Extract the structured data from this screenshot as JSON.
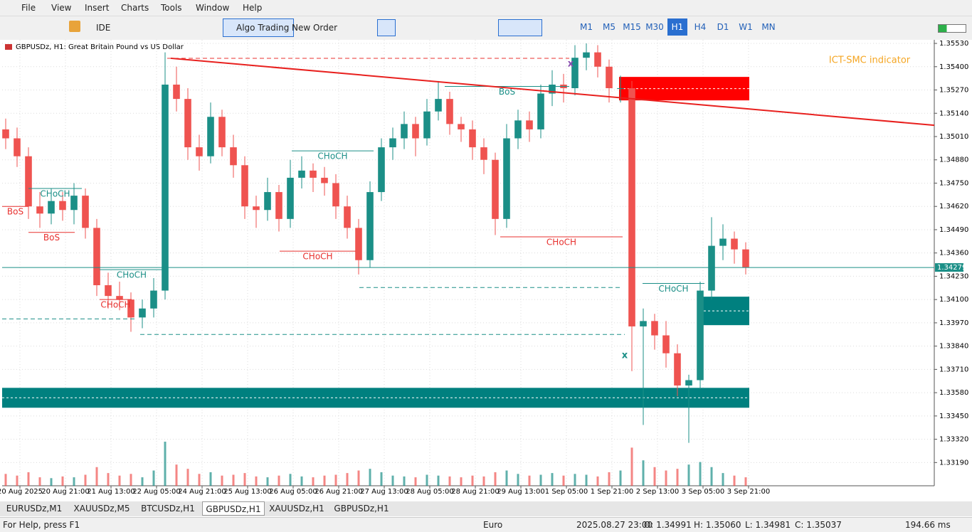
{
  "menu": [
    "File",
    "View",
    "Insert",
    "Charts",
    "Tools",
    "Window",
    "Help"
  ],
  "toolbar": {
    "buttons": [
      "IDE",
      "Algo Trading",
      "New Order"
    ],
    "timeframes": [
      "M1",
      "M5",
      "M15",
      "M30",
      "H1",
      "H4",
      "D1",
      "W1",
      "MN"
    ],
    "active_timeframe": "H1"
  },
  "chart_data": {
    "type": "candlestick",
    "title": "GBPUSDz, H1:  Great Britain Pound vs US Dollar",
    "indicator_label": "ICT-SMC indicator",
    "indicator_color": "#f5a623",
    "up_color": "#1b8f87",
    "down_color": "#ef5350",
    "grid": true,
    "xlim": [
      -0.3125,
      81.5625
    ],
    "ylim": [
      1.331,
      1.3555
    ],
    "yticks": [
      {
        "value": 1.3553,
        "label": "1.35530"
      },
      {
        "value": 1.354,
        "label": "1.35400"
      },
      {
        "value": 1.3527,
        "label": "1.35270"
      },
      {
        "value": 1.3514,
        "label": "1.35140"
      },
      {
        "value": 1.3501,
        "label": "1.35010"
      },
      {
        "value": 1.3488,
        "label": "1.34880"
      },
      {
        "value": 1.3475,
        "label": "1.34750"
      },
      {
        "value": 1.3462,
        "label": "1.34620"
      },
      {
        "value": 1.3449,
        "label": "1.34490"
      },
      {
        "value": 1.3436,
        "label": "1.34360"
      },
      {
        "value": 1.3423,
        "label": "1.34230"
      },
      {
        "value": 1.341,
        "label": "1.34100"
      },
      {
        "value": 1.3397,
        "label": "1.33970"
      },
      {
        "value": 1.3384,
        "label": "1.33840"
      },
      {
        "value": 1.3371,
        "label": "1.33710"
      },
      {
        "value": 1.3358,
        "label": "1.33580"
      },
      {
        "value": 1.3345,
        "label": "1.33450"
      },
      {
        "value": 1.3332,
        "label": "1.33320"
      },
      {
        "value": 1.3319,
        "label": "1.33190"
      }
    ],
    "xticks": [
      {
        "value": 1.25,
        "label": "20 Aug 2025"
      },
      {
        "value": 5.25,
        "label": "20 Aug 21:00"
      },
      {
        "value": 9.25,
        "label": "21 Aug 13:00"
      },
      {
        "value": 13.25,
        "label": "22 Aug 05:00"
      },
      {
        "value": 17.25,
        "label": "24 Aug 21:00"
      },
      {
        "value": 21.25,
        "label": "25 Aug 13:00"
      },
      {
        "value": 25.25,
        "label": "26 Aug 05:00"
      },
      {
        "value": 29.25,
        "label": "26 Aug 21:00"
      },
      {
        "value": 33.25,
        "label": "27 Aug 13:00"
      },
      {
        "value": 37.25,
        "label": "28 Aug 05:00"
      },
      {
        "value": 41.25,
        "label": "28 Aug 21:00"
      },
      {
        "value": 45.25,
        "label": "29 Aug 13:00"
      },
      {
        "value": 49.25,
        "label": "1 Sep 05:00"
      },
      {
        "value": 53.25,
        "label": "1 Sep 21:00"
      },
      {
        "value": 57.25,
        "label": "2 Sep 13:00"
      },
      {
        "value": 61.25,
        "label": "3 Sep 05:00"
      },
      {
        "value": 65.25,
        "label": "3 Sep 21:00"
      }
    ],
    "open": [
      1.3505,
      1.35,
      1.349,
      1.3462,
      1.3458,
      1.3465,
      1.346,
      1.3468,
      1.345,
      1.3418,
      1.3412,
      1.341,
      1.34,
      1.3405,
      1.3415,
      1.353,
      1.3522,
      1.3495,
      1.349,
      1.3512,
      1.3495,
      1.3485,
      1.3462,
      1.346,
      1.347,
      1.3455,
      1.3478,
      1.3482,
      1.3478,
      1.3475,
      1.3462,
      1.345,
      1.3432,
      1.347,
      1.3495,
      1.35,
      1.3508,
      1.35,
      1.3515,
      1.3522,
      1.3508,
      1.3505,
      1.3495,
      1.3488,
      1.3455,
      1.35,
      1.351,
      1.3505,
      1.3525,
      1.353,
      1.3528,
      1.3545,
      1.3548,
      1.354,
      1.3528,
      1.3528,
      1.3395,
      1.3398,
      1.339,
      1.338,
      1.3362,
      1.3365,
      1.3415,
      1.344,
      1.3444,
      1.3438
    ],
    "high": [
      1.3511,
      1.3506,
      1.3495,
      1.347,
      1.3472,
      1.347,
      1.3475,
      1.3472,
      1.3455,
      1.3425,
      1.342,
      1.3414,
      1.341,
      1.3422,
      1.3548,
      1.354,
      1.3528,
      1.3502,
      1.352,
      1.3516,
      1.3502,
      1.349,
      1.3468,
      1.3478,
      1.3474,
      1.3488,
      1.349,
      1.3486,
      1.3484,
      1.348,
      1.3468,
      1.3455,
      1.3476,
      1.35,
      1.3506,
      1.3515,
      1.3512,
      1.3522,
      1.3532,
      1.3526,
      1.3512,
      1.351,
      1.35,
      1.3492,
      1.3508,
      1.3516,
      1.3515,
      1.353,
      1.3538,
      1.3536,
      1.3552,
      1.3553,
      1.3552,
      1.3544,
      1.3535,
      1.3532,
      1.3405,
      1.3402,
      1.3398,
      1.3385,
      1.3368,
      1.342,
      1.3456,
      1.3452,
      1.3448,
      1.3442
    ],
    "low": [
      1.3494,
      1.3484,
      1.3455,
      1.345,
      1.3452,
      1.3454,
      1.3452,
      1.3444,
      1.3412,
      1.3405,
      1.3404,
      1.3392,
      1.3394,
      1.34,
      1.341,
      1.3515,
      1.3488,
      1.3482,
      1.3486,
      1.349,
      1.3478,
      1.3455,
      1.345,
      1.3454,
      1.3448,
      1.345,
      1.3472,
      1.347,
      1.3468,
      1.3455,
      1.3444,
      1.3424,
      1.3428,
      1.3465,
      1.3488,
      1.3494,
      1.349,
      1.3496,
      1.351,
      1.3502,
      1.3498,
      1.3488,
      1.348,
      1.3446,
      1.345,
      1.3494,
      1.3498,
      1.35,
      1.3518,
      1.352,
      1.3524,
      1.3538,
      1.3534,
      1.352,
      1.352,
      1.337,
      1.334,
      1.3382,
      1.3372,
      1.3356,
      1.333,
      1.336,
      1.341,
      1.3432,
      1.343,
      1.3424
    ],
    "close": [
      1.35,
      1.349,
      1.3462,
      1.3458,
      1.3465,
      1.346,
      1.3468,
      1.345,
      1.3418,
      1.3412,
      1.341,
      1.34,
      1.3405,
      1.3415,
      1.353,
      1.3522,
      1.3495,
      1.349,
      1.3512,
      1.3495,
      1.3485,
      1.3462,
      1.346,
      1.347,
      1.3455,
      1.3478,
      1.3482,
      1.3478,
      1.3475,
      1.3462,
      1.345,
      1.3432,
      1.347,
      1.3495,
      1.35,
      1.3508,
      1.35,
      1.3515,
      1.3522,
      1.3508,
      1.3505,
      1.3495,
      1.3488,
      1.3455,
      1.35,
      1.351,
      1.3505,
      1.3525,
      1.353,
      1.3528,
      1.3545,
      1.3548,
      1.354,
      1.3528,
      1.3528,
      1.3395,
      1.3398,
      1.339,
      1.338,
      1.3362,
      1.3365,
      1.3415,
      1.344,
      1.3444,
      1.3438,
      1.3428
    ],
    "volume": [
      14,
      12,
      16,
      10,
      9,
      11,
      10,
      13,
      22,
      15,
      12,
      14,
      10,
      18,
      52,
      25,
      20,
      14,
      16,
      12,
      13,
      15,
      11,
      10,
      12,
      14,
      11,
      10,
      12,
      13,
      15,
      18,
      20,
      16,
      12,
      11,
      10,
      13,
      12,
      11,
      10,
      12,
      11,
      16,
      18,
      14,
      12,
      13,
      15,
      12,
      14,
      13,
      11,
      16,
      18,
      45,
      30,
      22,
      18,
      20,
      25,
      28,
      22,
      15,
      12,
      10
    ],
    "current_price": 1.34279,
    "current_price_color": "#1b8f87",
    "trendline": {
      "color": "#e8201e",
      "x": [
        14.5,
        81.5625
      ],
      "y": [
        1.35447,
        1.35073
      ]
    },
    "zones": [
      {
        "color": "#ff0000",
        "x0": 53.875,
        "x1": 65.3125,
        "y0": 1.35343,
        "y1": 1.35212
      },
      {
        "color": "#00807f",
        "x0": 60.9375,
        "x1": 65.3125,
        "y0": 1.34116,
        "y1": 1.33957
      },
      {
        "color": "#00807f",
        "x0": -0.3125,
        "x1": 65.3125,
        "y0": 1.33607,
        "y1": 1.33496
      }
    ],
    "structures": [
      {
        "label": "BoS",
        "color": "#e8312f",
        "y": 1.3462,
        "x0": -0.3125,
        "x1": 2
      },
      {
        "label": "CHoCH",
        "color": "#1b8f87",
        "y": 1.3472,
        "x0": 2,
        "x1": 6.6875
      },
      {
        "label": "BoS",
        "color": "#e8312f",
        "y": 1.34475,
        "x0": 2,
        "x1": 6.0625
      },
      {
        "label": "CHoCH",
        "color": "#1b8f87",
        "y": 1.34267,
        "x0": 8.25,
        "x1": 13.875
      },
      {
        "label": "CHoCH",
        "color": "#e8312f",
        "y": 1.341,
        "x0": 8.25,
        "x1": 11.0625
      },
      {
        "label": "CHoCH",
        "color": "#1b8f87",
        "y": 1.3493,
        "x0": 25.125,
        "x1": 32.3125
      },
      {
        "label": "CHoCH",
        "color": "#e8312f",
        "y": 1.3437,
        "x0": 24.0625,
        "x1": 30.75
      },
      {
        "label": "CHoCH",
        "color": "#e8312f",
        "y": 1.3445,
        "x0": 43.4375,
        "x1": 54.1875
      },
      {
        "label": "BoS",
        "color": "#1b8f87",
        "y": 1.3529,
        "x0": 38.5625,
        "x1": 49.5
      },
      {
        "label": "CHoCH",
        "color": "#1b8f87",
        "y": 1.3419,
        "x0": 55.9375,
        "x1": 61.375
      }
    ],
    "levels": [
      {
        "color": "#e8312f",
        "y": 1.35447,
        "x0": 14.1875,
        "x1": 49.5
      },
      {
        "color": "#1b8f87",
        "y": 1.34167,
        "x0": 31.0625,
        "x1": 54.1875
      },
      {
        "color": "#1b8f87",
        "y": 1.33992,
        "x0": -0.3125,
        "x1": 11.375
      },
      {
        "color": "#1b8f87",
        "y": 1.33905,
        "x0": 11.8125,
        "x1": 54.375
      }
    ],
    "markers": [
      {
        "text": "x",
        "color": "#8a4fb0",
        "x": 49.625,
        "y": 1.35415
      },
      {
        "text": "x",
        "color": "#1b8f87",
        "x": 54.375,
        "y": 1.33786
      }
    ]
  },
  "tabs": [
    "EURUSDz,M1",
    "XAUUSDz,M5",
    "BTCUSDz,H1",
    "GBPUSDz,H1",
    "XAUUSDz,H1",
    "GBPUSDz,H1"
  ],
  "active_tab": 3,
  "status": {
    "help": "For Help, press F1",
    "profile": "Euro",
    "time": "2025.08.27 23:00",
    "open": "O: 1.34991",
    "high": "H: 1.35060",
    "low": "L: 1.34981",
    "close": "C: 1.35037",
    "ping": "194.66 ms"
  }
}
